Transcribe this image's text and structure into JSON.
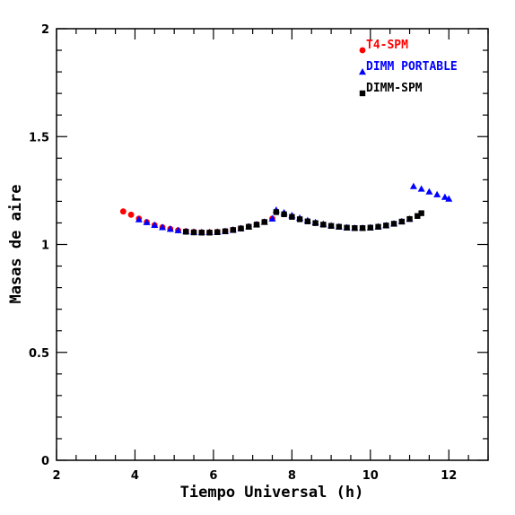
{
  "chart_data": {
    "type": "scatter",
    "xlabel": "Tiempo Universal (h)",
    "ylabel": "Masas de aire",
    "xlim": [
      2,
      13
    ],
    "ylim": [
      0,
      2
    ],
    "x_ticks": [
      2,
      4,
      6,
      8,
      10,
      12
    ],
    "y_ticks": [
      0,
      0.5,
      1,
      1.5,
      2
    ],
    "x_tick_labels": [
      "2",
      "4",
      "6",
      "8",
      "10",
      "12"
    ],
    "y_tick_labels": [
      "0",
      "0.5",
      "1",
      "1.5",
      "2"
    ],
    "grid": false,
    "legend_position": "top-right",
    "series": [
      {
        "name": "T4-SPM",
        "color": "#ff0000",
        "marker": "circle",
        "x": [
          3.7,
          3.9,
          4.1,
          4.3,
          4.5,
          4.7,
          4.9,
          5.1,
          5.3,
          5.5,
          5.7,
          5.9,
          6.1,
          6.3,
          6.5,
          6.7,
          6.9,
          7.1,
          7.3,
          7.5
        ],
        "y": [
          1.153,
          1.138,
          1.12,
          1.104,
          1.09,
          1.08,
          1.072,
          1.066,
          1.061,
          1.058,
          1.056,
          1.056,
          1.058,
          1.062,
          1.068,
          1.075,
          1.083,
          1.093,
          1.105,
          1.12
        ]
      },
      {
        "name": "DIMM PORTABLE",
        "color": "#0000ff",
        "marker": "triangle",
        "x": [
          4.1,
          4.3,
          4.5,
          4.7,
          4.9,
          5.1,
          5.3,
          5.5,
          5.7,
          5.9,
          6.1,
          6.3,
          6.5,
          6.7,
          6.9,
          7.1,
          7.3,
          7.5,
          7.6,
          7.8,
          8.0,
          8.2,
          8.4,
          8.6,
          8.8,
          9.0,
          9.2,
          9.4,
          9.6,
          9.8,
          10.0,
          10.2,
          10.4,
          10.6,
          10.8,
          11.0,
          11.1,
          11.3,
          11.5,
          11.7,
          11.9,
          12.0
        ],
        "y": [
          1.116,
          1.103,
          1.09,
          1.08,
          1.072,
          1.066,
          1.061,
          1.058,
          1.057,
          1.057,
          1.058,
          1.062,
          1.068,
          1.075,
          1.083,
          1.093,
          1.105,
          1.12,
          1.16,
          1.148,
          1.135,
          1.123,
          1.112,
          1.103,
          1.095,
          1.088,
          1.083,
          1.079,
          1.077,
          1.077,
          1.079,
          1.083,
          1.089,
          1.097,
          1.107,
          1.119,
          1.27,
          1.258,
          1.245,
          1.232,
          1.22,
          1.212
        ]
      },
      {
        "name": "DIMM-SPM",
        "color": "#000000",
        "marker": "square",
        "x": [
          5.3,
          5.5,
          5.7,
          5.9,
          6.1,
          6.3,
          6.5,
          6.7,
          6.9,
          7.1,
          7.3,
          7.6,
          7.8,
          8.0,
          8.2,
          8.4,
          8.6,
          8.8,
          9.0,
          9.2,
          9.4,
          9.6,
          9.8,
          10.0,
          10.2,
          10.4,
          10.6,
          10.8,
          11.0,
          11.2,
          11.3
        ],
        "y": [
          1.059,
          1.056,
          1.055,
          1.055,
          1.057,
          1.061,
          1.067,
          1.074,
          1.082,
          1.092,
          1.104,
          1.15,
          1.14,
          1.128,
          1.117,
          1.107,
          1.099,
          1.092,
          1.086,
          1.082,
          1.078,
          1.076,
          1.076,
          1.078,
          1.082,
          1.088,
          1.096,
          1.106,
          1.118,
          1.132,
          1.145
        ]
      }
    ]
  }
}
